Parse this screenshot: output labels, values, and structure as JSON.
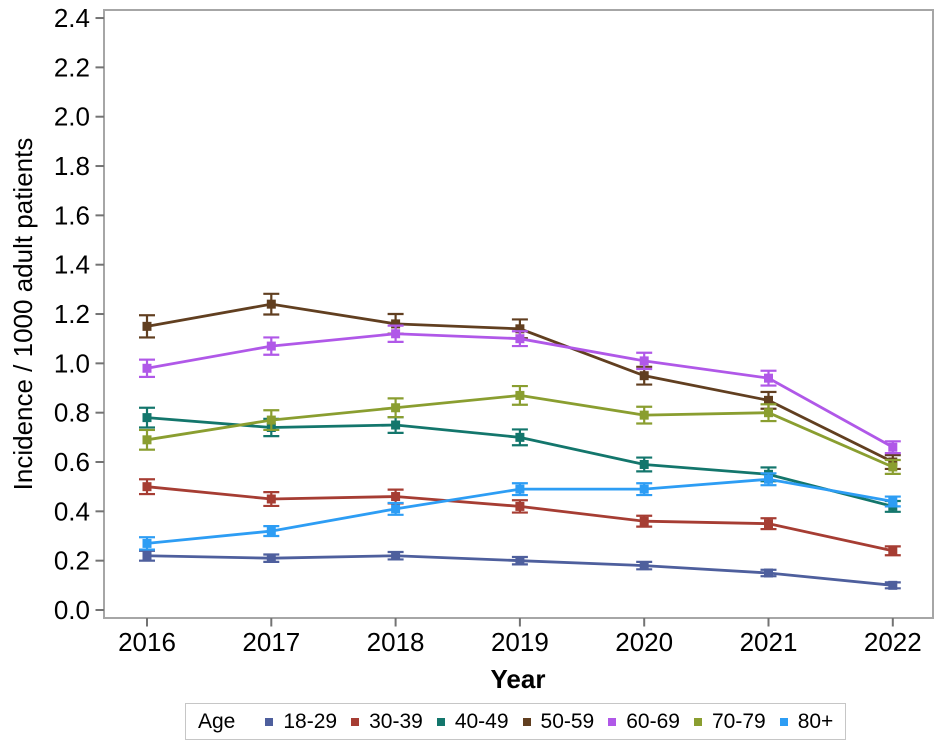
{
  "figure": {
    "background": "#ffffff"
  },
  "chart_data": {
    "type": "line",
    "title": "",
    "xlabel": "Year",
    "ylabel": "Incidence / 1000 adult patients",
    "legend_title": "Age",
    "legend_position": "bottom",
    "grid": false,
    "error_bars": true,
    "marker": "square",
    "frame_color": "#a6a6a6",
    "tick_color": "#737373",
    "x": [
      2016,
      2017,
      2018,
      2019,
      2020,
      2021,
      2022
    ],
    "ylim": [
      0.0,
      2.4
    ],
    "ytick_step": 0.2,
    "series": [
      {
        "name": "18-29",
        "color": "#4e5f9d",
        "values": [
          0.22,
          0.21,
          0.22,
          0.2,
          0.18,
          0.15,
          0.1
        ],
        "errors": [
          0.02,
          0.015,
          0.015,
          0.015,
          0.015,
          0.013,
          0.012
        ]
      },
      {
        "name": "30-39",
        "color": "#a63d33",
        "values": [
          0.5,
          0.45,
          0.46,
          0.42,
          0.36,
          0.35,
          0.24
        ],
        "errors": [
          0.03,
          0.028,
          0.028,
          0.025,
          0.022,
          0.022,
          0.018
        ]
      },
      {
        "name": "40-49",
        "color": "#13766c",
        "values": [
          0.78,
          0.74,
          0.75,
          0.7,
          0.59,
          0.55,
          0.42
        ],
        "errors": [
          0.04,
          0.035,
          0.032,
          0.032,
          0.028,
          0.028,
          0.022
        ]
      },
      {
        "name": "50-59",
        "color": "#613f20",
        "values": [
          1.15,
          1.24,
          1.16,
          1.14,
          0.95,
          0.85,
          0.6
        ],
        "errors": [
          0.045,
          0.042,
          0.04,
          0.038,
          0.036,
          0.034,
          0.028
        ]
      },
      {
        "name": "60-69",
        "color": "#b058e8",
        "values": [
          0.98,
          1.07,
          1.12,
          1.1,
          1.01,
          0.94,
          0.66
        ],
        "errors": [
          0.035,
          0.035,
          0.033,
          0.03,
          0.033,
          0.03,
          0.024
        ]
      },
      {
        "name": "70-79",
        "color": "#8a9e30",
        "values": [
          0.69,
          0.77,
          0.82,
          0.87,
          0.79,
          0.8,
          0.58
        ],
        "errors": [
          0.04,
          0.04,
          0.038,
          0.038,
          0.034,
          0.034,
          0.028
        ]
      },
      {
        "name": "80+",
        "color": "#2d9df4",
        "values": [
          0.27,
          0.32,
          0.41,
          0.49,
          0.49,
          0.53,
          0.44
        ],
        "errors": [
          0.025,
          0.02,
          0.024,
          0.024,
          0.024,
          0.024,
          0.02
        ]
      }
    ]
  }
}
